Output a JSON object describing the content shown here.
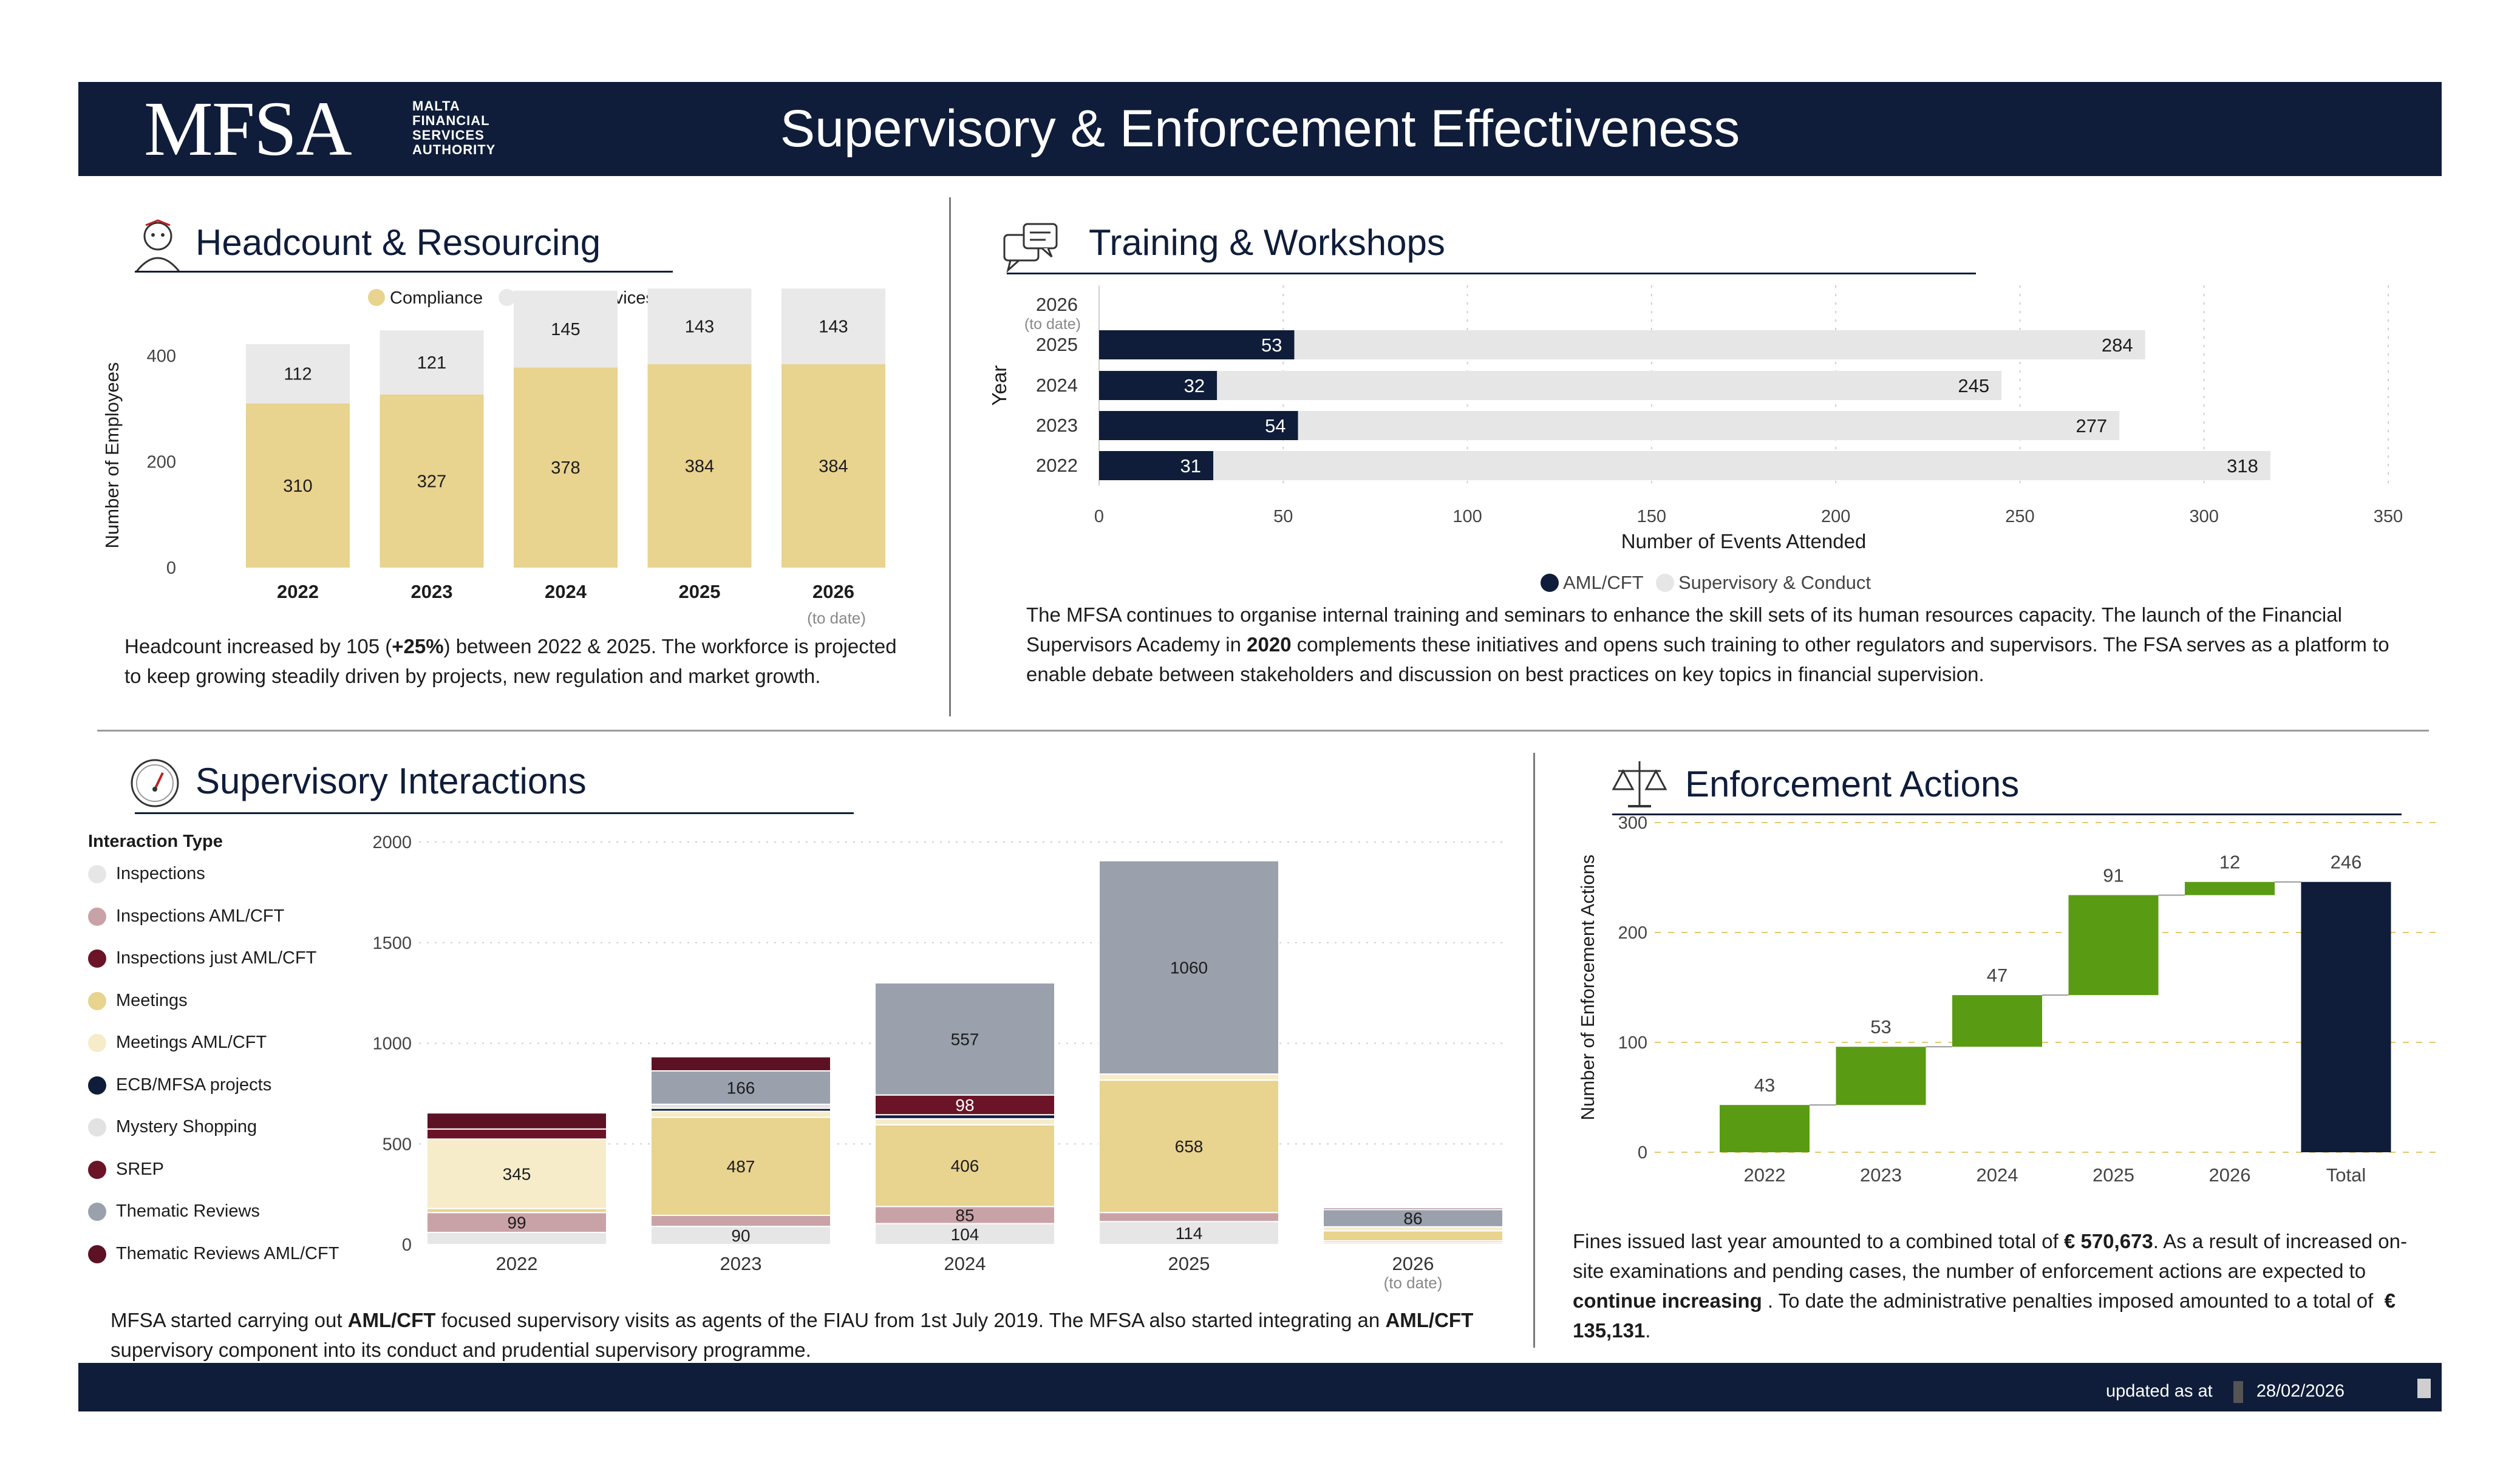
{
  "header": {
    "logo": "MFSA",
    "logo_sub": [
      "MALTA",
      "FINANCIAL",
      "SERVICES",
      "AUTHORITY"
    ],
    "title": "Supervisory & Enforcement Effectiveness"
  },
  "sections": {
    "headcount": {
      "title": "Headcount & Resourcing",
      "icon": "person-icon",
      "text_html": "Headcount increased by 105 (<b>+25%</b>) between 2022 &amp; 2025. The workforce is projected to keep growing steadily driven by projects, new regulation and market growth."
    },
    "training": {
      "title": "Training & Workshops",
      "icon": "chat-bubbles-icon",
      "text_html": "The MFSA continues to organise internal training and seminars to enhance the skill sets of its human resources capacity. The launch of the Financial Supervisors Academy in <b>2020</b> complements these initiatives and opens such training to other regulators and supervisors. The FSA serves as a platform to enable debate between stakeholders and discussion on best practices on key topics in financial supervision."
    },
    "interactions": {
      "title": "Supervisory Interactions",
      "icon": "gauge-icon",
      "text_html": "MFSA started carrying out <b>AML/CFT</b> focused supervisory visits as agents of the FIAU from 1st July 2019. The MFSA also started integrating an <b>AML/CFT</b> supervisory component into its conduct and prudential supervisory programme."
    },
    "enforcement": {
      "title": "Enforcement Actions",
      "icon": "scales-icon",
      "text_html": "Fines issued last year amounted to a combined total of <b>€ 570,673</b>. As a result of increased on-site examinations and pending cases, the number of enforcement actions are expected to <b>continue increasing</b> . To date the administrative penalties imposed amounted to a total of &nbsp;<b>€ 135,131</b>."
    }
  },
  "colors": {
    "navy": "#0f1d3a",
    "compliance": "#e8d38f",
    "support": "#e9e9e9",
    "green": "#5a9b14",
    "aml_bar": "#0f1d3a",
    "sup_bar": "#e6e6e6"
  },
  "footer": {
    "updated_label": "updated as at",
    "date": "28/02/2026"
  },
  "chart_data": [
    {
      "id": "headcount",
      "type": "bar",
      "stacked": true,
      "categories": [
        "2022",
        "2023",
        "2024",
        "2025",
        "2026"
      ],
      "category_sublabels": [
        "",
        "",
        "",
        "",
        "(to date)"
      ],
      "series": [
        {
          "name": "Compliance",
          "color": "#e8d38f",
          "values": [
            310,
            327,
            378,
            384,
            384
          ]
        },
        {
          "name": "Support Services",
          "color": "#e9e9e9",
          "values": [
            112,
            121,
            145,
            143,
            143
          ]
        }
      ],
      "ylabel": "Number of Employees",
      "yticks": [
        0,
        200,
        400
      ],
      "ylim": [
        0,
        470
      ],
      "legend": "top"
    },
    {
      "id": "training",
      "type": "bar",
      "orientation": "horizontal",
      "categories": [
        "2026",
        "2025",
        "2024",
        "2023",
        "2022"
      ],
      "category_sublabels": [
        "(to date)",
        "",
        "",
        "",
        ""
      ],
      "series": [
        {
          "name": "AML/CFT",
          "color": "#0f1d3a",
          "values": [
            null,
            53,
            32,
            54,
            31
          ]
        },
        {
          "name": "Supervisory & Conduct",
          "color": "#e6e6e6",
          "values": [
            null,
            284,
            245,
            277,
            318
          ]
        }
      ],
      "xlabel": "Number of Events Attended",
      "ylabel": "Year",
      "xticks": [
        0,
        50,
        100,
        150,
        200,
        250,
        300,
        350
      ],
      "xlim": [
        0,
        350
      ],
      "legend": "bottom"
    },
    {
      "id": "interactions",
      "type": "bar",
      "stacked": true,
      "legend_title": "Interaction Type",
      "categories": [
        "2022",
        "2023",
        "2024",
        "2025",
        "2026"
      ],
      "category_sublabels": [
        "",
        "",
        "",
        "",
        "(to date)"
      ],
      "series": [
        {
          "name": "Inspections",
          "color": "#e6e6e6",
          "values": [
            60,
            90,
            104,
            114,
            10
          ]
        },
        {
          "name": "Inspections  AML/CFT",
          "color": "#c9a2a7",
          "values": [
            99,
            55,
            85,
            45,
            8
          ]
        },
        {
          "name": "Inspections just AML/CFT",
          "color": "#6b1427",
          "values": [
            0,
            0,
            0,
            0,
            0
          ]
        },
        {
          "name": "Meetings",
          "color": "#e8d38f",
          "values": [
            20,
            487,
            406,
            658,
            50
          ]
        },
        {
          "name": "Meetings  AML/CFT",
          "color": "#f6ecc9",
          "values": [
            345,
            30,
            30,
            30,
            20
          ]
        },
        {
          "name": "ECB/MFSA projects",
          "color": "#0f1d3a",
          "values": [
            0,
            15,
            20,
            0,
            0
          ]
        },
        {
          "name": "Mystery Shopping",
          "color": "#e2e2e2",
          "values": [
            0,
            20,
            0,
            0,
            0
          ]
        },
        {
          "name": "SREP",
          "color": "#6b1427",
          "values": [
            50,
            0,
            98,
            0,
            0
          ]
        },
        {
          "name": "Thematic Reviews",
          "color": "#9aa1ac",
          "values": [
            0,
            166,
            557,
            1060,
            86
          ]
        },
        {
          "name": "Thematic Reviews    AML/CFT",
          "color": "#5c1224",
          "values": [
            80,
            70,
            0,
            0,
            8
          ]
        }
      ],
      "data_labels": {
        "Inspections": [
          "",
          "90",
          "104",
          "114",
          ""
        ],
        "Inspections  AML/CFT": [
          "99",
          "",
          "85",
          "",
          ""
        ],
        "Meetings": [
          "",
          "487",
          "406",
          "658",
          ""
        ],
        "Meetings  AML/CFT": [
          "345",
          "",
          "",
          "",
          ""
        ],
        "SREP": [
          "",
          "",
          "98",
          "",
          ""
        ],
        "Thematic Reviews": [
          "",
          "166",
          "557",
          "1060",
          "86"
        ]
      },
      "yticks": [
        0,
        500,
        1000,
        1500,
        2000
      ],
      "ylim": [
        0,
        2000
      ],
      "grid": true,
      "legend": "left"
    },
    {
      "id": "enforcement",
      "type": "bar",
      "waterfall": true,
      "categories": [
        "2022",
        "2023",
        "2024",
        "2025",
        "2026",
        "Total"
      ],
      "values": [
        43,
        53,
        47,
        91,
        12,
        246
      ],
      "ylabel": "Number of Enforcement Actions",
      "yticks": [
        0,
        100,
        200,
        300
      ],
      "ylim": [
        0,
        300
      ],
      "grid": true,
      "colors": {
        "step": "#5a9b14",
        "total": "#0f1d3a"
      }
    }
  ]
}
